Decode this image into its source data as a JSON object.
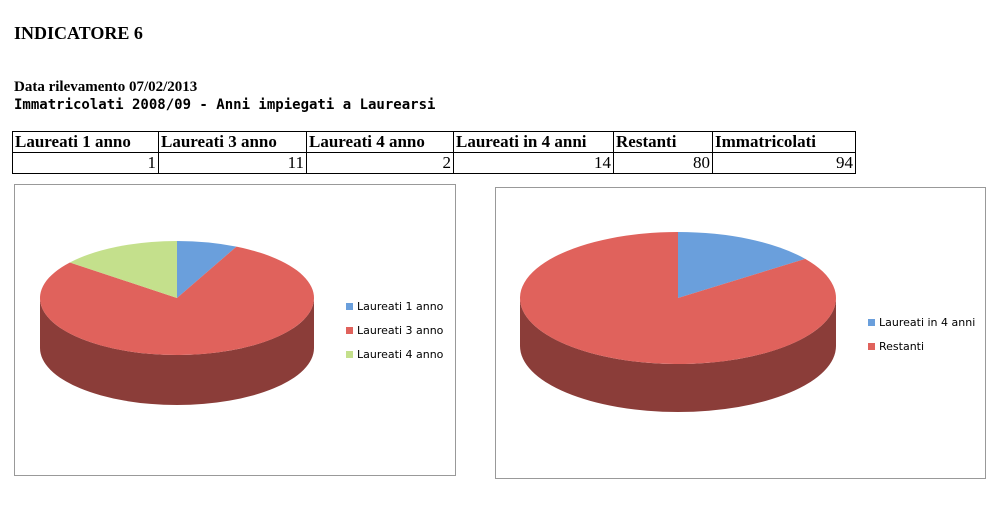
{
  "header": {
    "title": "INDICATORE 6",
    "date": "Data rilevamento 07/02/2013",
    "subtitle": "Immatricolati 2008/09 - Anni impiegati a Laurearsi"
  },
  "table": {
    "headers": [
      "Laureati 1 anno",
      "Laureati 3 anno",
      "Laureati 4 anno",
      "Laureati in 4 anni",
      "Restanti",
      "Immatricolati"
    ],
    "rows": [
      [
        1,
        11,
        2,
        14,
        80,
        94
      ]
    ]
  },
  "charts": [
    {
      "type": "pie",
      "categories": [
        "Laureati 1 anno",
        "Laureati 3 anno",
        "Laureati 4 anno"
      ],
      "values": [
        1,
        11,
        2
      ],
      "colors": [
        "#6a9fdc",
        "#e0625c",
        "#c4e08c"
      ]
    },
    {
      "type": "pie",
      "categories": [
        "Laureati in 4 anni",
        "Restanti"
      ],
      "values": [
        14,
        80
      ],
      "colors": [
        "#6a9fdc",
        "#e0625c"
      ]
    }
  ]
}
